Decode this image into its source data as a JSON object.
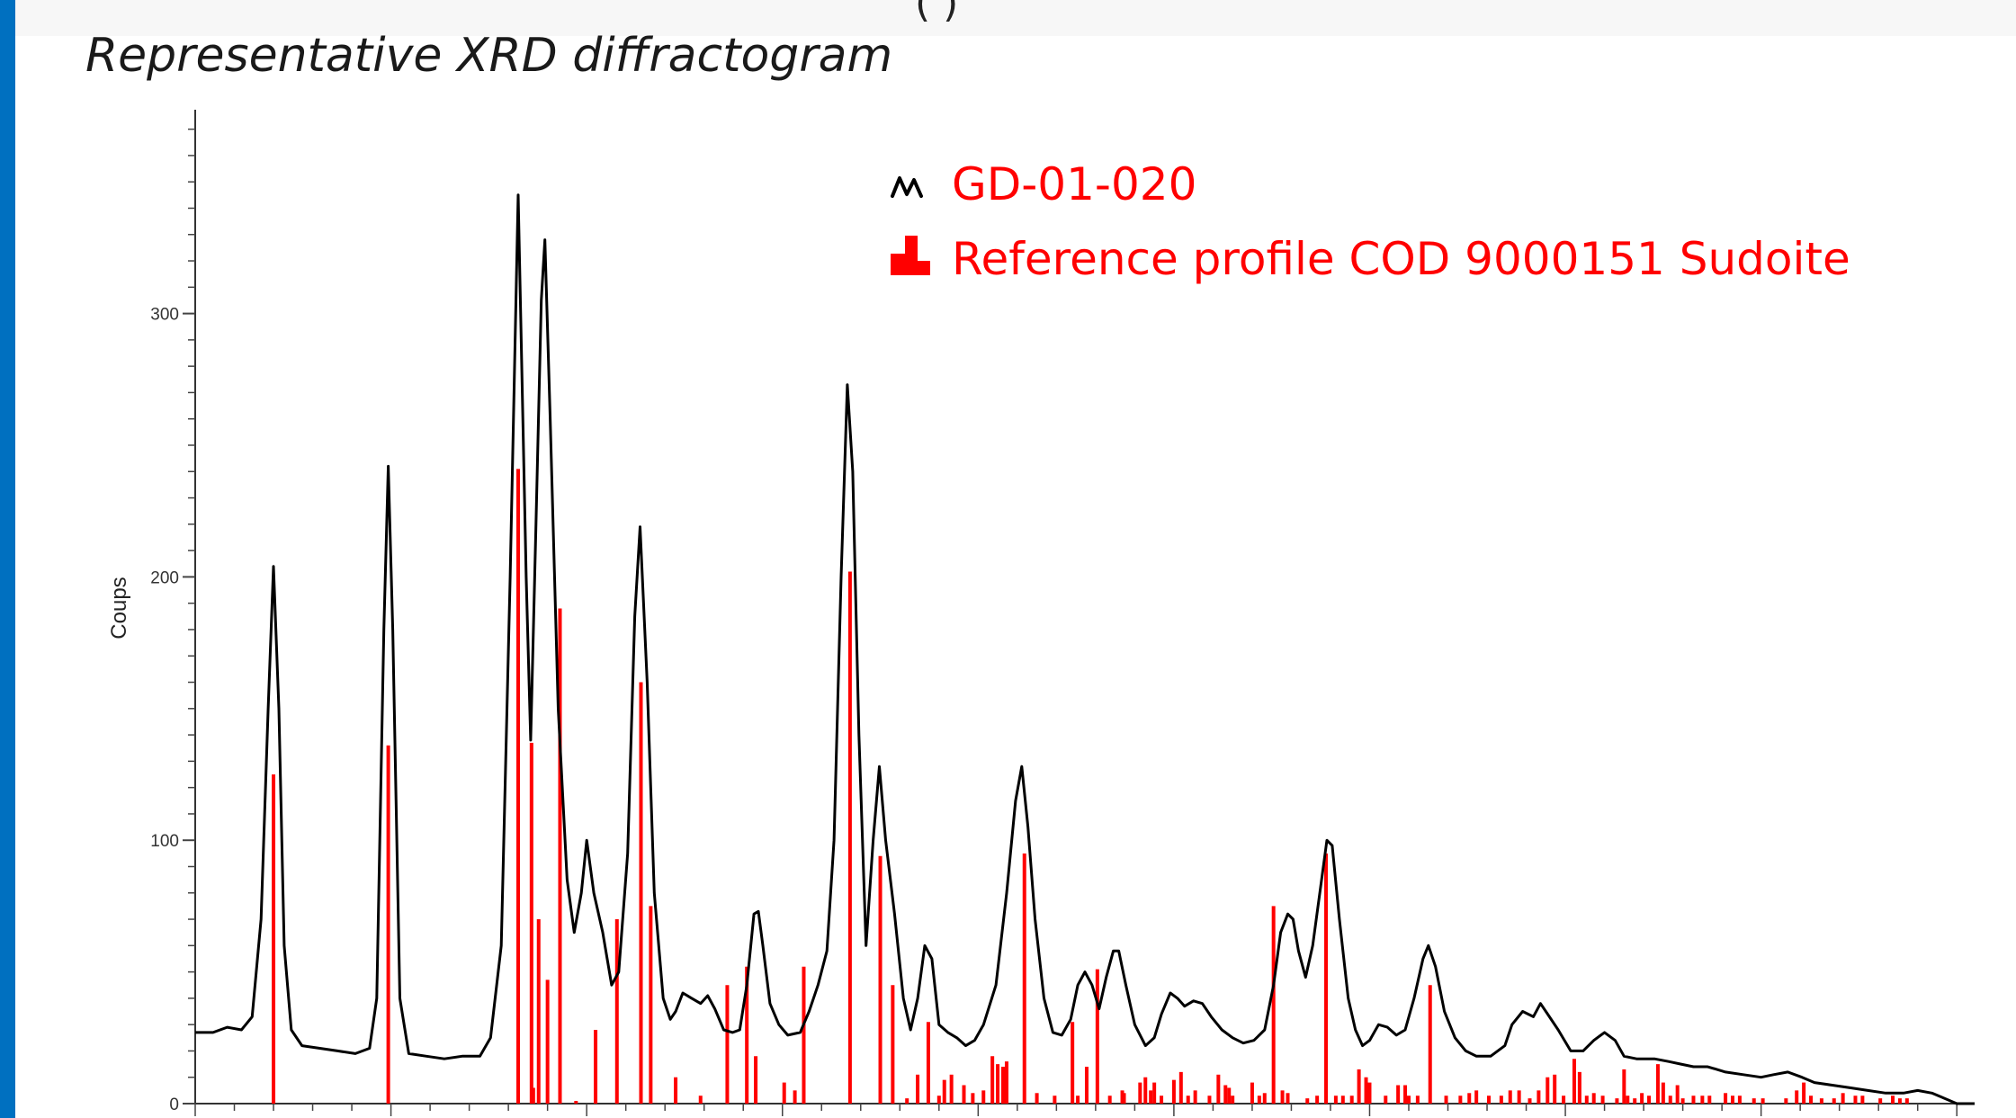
{
  "header": {
    "partial_text": "(  )"
  },
  "slide": {
    "title": "Representative XRD diffractogram"
  },
  "colors": {
    "accent_bar": "#0070c0",
    "trace": "#000000",
    "reference": "#ff0000"
  },
  "chart_data": {
    "type": "line",
    "title": "",
    "ylabel": "Coups",
    "xlabel": "",
    "ylim": [
      0,
      375
    ],
    "xlim": [
      0,
      100
    ],
    "yticks": [
      0,
      100,
      200,
      300
    ],
    "yticklabels": [
      "0",
      "100",
      "200",
      "300"
    ],
    "legend_position": "top-center",
    "series": [
      {
        "name": "GD-01-020",
        "style": "line",
        "color": "#000000",
        "points": [
          [
            0,
            27
          ],
          [
            1,
            27
          ],
          [
            1.8,
            29
          ],
          [
            2.6,
            28
          ],
          [
            3.2,
            33
          ],
          [
            3.7,
            70
          ],
          [
            4.1,
            150
          ],
          [
            4.4,
            204
          ],
          [
            4.7,
            150
          ],
          [
            5.0,
            60
          ],
          [
            5.4,
            28
          ],
          [
            6.0,
            22
          ],
          [
            7.0,
            21
          ],
          [
            8.0,
            20
          ],
          [
            9.0,
            19
          ],
          [
            9.8,
            21
          ],
          [
            10.2,
            40
          ],
          [
            10.6,
            180
          ],
          [
            10.85,
            242
          ],
          [
            11.1,
            180
          ],
          [
            11.5,
            40
          ],
          [
            12.0,
            19
          ],
          [
            13.0,
            18
          ],
          [
            14.0,
            17
          ],
          [
            15.0,
            18
          ],
          [
            16.0,
            18
          ],
          [
            16.6,
            25
          ],
          [
            17.2,
            60
          ],
          [
            17.7,
            200
          ],
          [
            18.15,
            345
          ],
          [
            18.6,
            200
          ],
          [
            18.85,
            138
          ],
          [
            19.15,
            220
          ],
          [
            19.45,
            305
          ],
          [
            19.65,
            328
          ],
          [
            19.95,
            260
          ],
          [
            20.4,
            150
          ],
          [
            20.9,
            85
          ],
          [
            21.3,
            65
          ],
          [
            21.7,
            80
          ],
          [
            22.0,
            100
          ],
          [
            22.4,
            80
          ],
          [
            22.9,
            65
          ],
          [
            23.4,
            45
          ],
          [
            23.8,
            50
          ],
          [
            24.3,
            95
          ],
          [
            24.7,
            185
          ],
          [
            25.0,
            219
          ],
          [
            25.4,
            160
          ],
          [
            25.8,
            80
          ],
          [
            26.3,
            40
          ],
          [
            26.7,
            32
          ],
          [
            27.0,
            35
          ],
          [
            27.4,
            42
          ],
          [
            27.9,
            40
          ],
          [
            28.4,
            38
          ],
          [
            28.8,
            41
          ],
          [
            29.2,
            36
          ],
          [
            29.7,
            28
          ],
          [
            30.2,
            27
          ],
          [
            30.6,
            28
          ],
          [
            31.0,
            45
          ],
          [
            31.4,
            72
          ],
          [
            31.65,
            73
          ],
          [
            31.9,
            60
          ],
          [
            32.3,
            38
          ],
          [
            32.8,
            30
          ],
          [
            33.3,
            26
          ],
          [
            34.0,
            27
          ],
          [
            34.5,
            35
          ],
          [
            35.0,
            45
          ],
          [
            35.5,
            58
          ],
          [
            35.9,
            100
          ],
          [
            36.3,
            200
          ],
          [
            36.65,
            273
          ],
          [
            36.95,
            240
          ],
          [
            37.3,
            140
          ],
          [
            37.7,
            60
          ],
          [
            38.1,
            100
          ],
          [
            38.45,
            128
          ],
          [
            38.8,
            100
          ],
          [
            39.3,
            72
          ],
          [
            39.8,
            40
          ],
          [
            40.2,
            28
          ],
          [
            40.6,
            40
          ],
          [
            41.0,
            60
          ],
          [
            41.4,
            55
          ],
          [
            41.8,
            30
          ],
          [
            42.3,
            27
          ],
          [
            42.8,
            25
          ],
          [
            43.3,
            22
          ],
          [
            43.8,
            24
          ],
          [
            44.3,
            30
          ],
          [
            45.0,
            45
          ],
          [
            45.6,
            80
          ],
          [
            46.1,
            115
          ],
          [
            46.45,
            128
          ],
          [
            46.8,
            105
          ],
          [
            47.2,
            70
          ],
          [
            47.7,
            40
          ],
          [
            48.2,
            27
          ],
          [
            48.7,
            26
          ],
          [
            49.2,
            32
          ],
          [
            49.6,
            45
          ],
          [
            50.0,
            50
          ],
          [
            50.4,
            45
          ],
          [
            50.8,
            36
          ],
          [
            51.2,
            48
          ],
          [
            51.6,
            58
          ],
          [
            51.9,
            58
          ],
          [
            52.3,
            45
          ],
          [
            52.8,
            30
          ],
          [
            53.4,
            22
          ],
          [
            53.9,
            25
          ],
          [
            54.3,
            34
          ],
          [
            54.8,
            42
          ],
          [
            55.2,
            40
          ],
          [
            55.6,
            37
          ],
          [
            56.1,
            39
          ],
          [
            56.6,
            38
          ],
          [
            57.1,
            33
          ],
          [
            57.7,
            28
          ],
          [
            58.3,
            25
          ],
          [
            58.9,
            23
          ],
          [
            59.5,
            24
          ],
          [
            60.1,
            28
          ],
          [
            60.6,
            45
          ],
          [
            61.0,
            65
          ],
          [
            61.4,
            72
          ],
          [
            61.7,
            70
          ],
          [
            62.0,
            58
          ],
          [
            62.4,
            48
          ],
          [
            62.8,
            60
          ],
          [
            63.2,
            80
          ],
          [
            63.6,
            100
          ],
          [
            63.9,
            98
          ],
          [
            64.3,
            70
          ],
          [
            64.8,
            40
          ],
          [
            65.2,
            28
          ],
          [
            65.6,
            22
          ],
          [
            66.0,
            24
          ],
          [
            66.5,
            30
          ],
          [
            67.0,
            29
          ],
          [
            67.5,
            26
          ],
          [
            68.0,
            28
          ],
          [
            68.5,
            40
          ],
          [
            69.0,
            55
          ],
          [
            69.3,
            60
          ],
          [
            69.7,
            52
          ],
          [
            70.2,
            35
          ],
          [
            70.8,
            25
          ],
          [
            71.4,
            20
          ],
          [
            72.0,
            18
          ],
          [
            72.8,
            18
          ],
          [
            73.6,
            22
          ],
          [
            74.0,
            30
          ],
          [
            74.6,
            35
          ],
          [
            75.2,
            33
          ],
          [
            75.6,
            38
          ],
          [
            76.0,
            34
          ],
          [
            76.6,
            28
          ],
          [
            77.3,
            20
          ],
          [
            78.0,
            20
          ],
          [
            78.6,
            24
          ],
          [
            79.2,
            27
          ],
          [
            79.8,
            24
          ],
          [
            80.3,
            18
          ],
          [
            81.0,
            17
          ],
          [
            82.0,
            17
          ],
          [
            82.8,
            16
          ],
          [
            83.5,
            15
          ],
          [
            84.2,
            14
          ],
          [
            85.0,
            14
          ],
          [
            86.0,
            12
          ],
          [
            87.0,
            11
          ],
          [
            88.0,
            10
          ],
          [
            88.7,
            11
          ],
          [
            89.5,
            12
          ],
          [
            90.3,
            10
          ],
          [
            91.0,
            8
          ],
          [
            92.0,
            7
          ],
          [
            93.0,
            6
          ],
          [
            94.0,
            5
          ],
          [
            95.0,
            4
          ],
          [
            96.0,
            4
          ],
          [
            96.8,
            5
          ],
          [
            97.6,
            4
          ],
          [
            98.3,
            2
          ],
          [
            99.0,
            0
          ],
          [
            100,
            0
          ]
        ]
      },
      {
        "name": "Reference profile COD 9000151 Sudoite",
        "style": "stick",
        "color": "#ff0000",
        "sticks": [
          [
            4.4,
            125
          ],
          [
            10.85,
            136
          ],
          [
            18.15,
            241
          ],
          [
            18.9,
            137
          ],
          [
            19.0,
            6
          ],
          [
            19.3,
            70
          ],
          [
            19.8,
            47
          ],
          [
            20.5,
            188
          ],
          [
            21.4,
            1
          ],
          [
            22.5,
            28
          ],
          [
            23.7,
            70
          ],
          [
            25.05,
            160
          ],
          [
            25.6,
            75
          ],
          [
            27.0,
            10
          ],
          [
            28.4,
            3
          ],
          [
            29.9,
            45
          ],
          [
            31.0,
            52
          ],
          [
            31.5,
            18
          ],
          [
            33.1,
            8
          ],
          [
            33.7,
            5
          ],
          [
            34.2,
            52
          ],
          [
            36.8,
            202
          ],
          [
            38.5,
            94
          ],
          [
            39.2,
            45
          ],
          [
            40.0,
            2
          ],
          [
            40.6,
            11
          ],
          [
            41.2,
            31
          ],
          [
            41.8,
            3
          ],
          [
            42.1,
            9
          ],
          [
            42.5,
            11
          ],
          [
            43.2,
            7
          ],
          [
            43.7,
            4
          ],
          [
            44.3,
            5
          ],
          [
            44.8,
            18
          ],
          [
            45.1,
            15
          ],
          [
            45.4,
            14
          ],
          [
            45.6,
            16
          ],
          [
            46.6,
            95
          ],
          [
            47.3,
            4
          ],
          [
            48.3,
            3
          ],
          [
            49.3,
            31
          ],
          [
            49.6,
            3
          ],
          [
            50.1,
            14
          ],
          [
            50.7,
            51
          ],
          [
            51.4,
            3
          ],
          [
            52.1,
            5
          ],
          [
            52.2,
            4
          ],
          [
            53.1,
            8
          ],
          [
            53.4,
            10
          ],
          [
            53.7,
            5
          ],
          [
            53.9,
            8
          ],
          [
            54.3,
            3
          ],
          [
            55.0,
            9
          ],
          [
            55.4,
            12
          ],
          [
            55.8,
            3
          ],
          [
            56.2,
            5
          ],
          [
            57.0,
            3
          ],
          [
            57.5,
            11
          ],
          [
            57.9,
            7
          ],
          [
            58.1,
            6
          ],
          [
            58.3,
            3
          ],
          [
            59.4,
            8
          ],
          [
            59.8,
            3
          ],
          [
            60.1,
            4
          ],
          [
            60.6,
            75
          ],
          [
            61.1,
            5
          ],
          [
            61.4,
            4
          ],
          [
            62.5,
            2
          ],
          [
            63.05,
            3
          ],
          [
            63.55,
            95
          ],
          [
            64.1,
            3
          ],
          [
            64.5,
            3
          ],
          [
            65.0,
            3
          ],
          [
            65.4,
            13
          ],
          [
            65.8,
            10
          ],
          [
            66.0,
            8
          ],
          [
            66.9,
            3
          ],
          [
            67.6,
            7
          ],
          [
            68.0,
            7
          ],
          [
            68.2,
            3
          ],
          [
            68.7,
            3
          ],
          [
            69.4,
            45
          ],
          [
            70.3,
            3
          ],
          [
            71.1,
            3
          ],
          [
            71.6,
            4
          ],
          [
            72.0,
            5
          ],
          [
            72.7,
            3
          ],
          [
            73.4,
            3
          ],
          [
            73.9,
            5
          ],
          [
            74.4,
            5
          ],
          [
            75.0,
            2
          ],
          [
            75.5,
            5
          ],
          [
            76.0,
            10
          ],
          [
            76.4,
            11
          ],
          [
            76.9,
            3
          ],
          [
            77.5,
            17
          ],
          [
            77.8,
            12
          ],
          [
            78.2,
            3
          ],
          [
            78.6,
            4
          ],
          [
            79.1,
            3
          ],
          [
            79.9,
            2
          ],
          [
            80.3,
            13
          ],
          [
            80.5,
            3
          ],
          [
            80.9,
            2
          ],
          [
            81.3,
            4
          ],
          [
            81.7,
            3
          ],
          [
            82.2,
            15
          ],
          [
            82.5,
            8
          ],
          [
            82.9,
            3
          ],
          [
            83.3,
            7
          ],
          [
            83.6,
            2
          ],
          [
            84.2,
            3
          ],
          [
            84.7,
            3
          ],
          [
            85.1,
            3
          ],
          [
            86.0,
            4
          ],
          [
            86.4,
            3
          ],
          [
            86.8,
            3
          ],
          [
            87.6,
            2
          ],
          [
            88.1,
            2
          ],
          [
            89.4,
            2
          ],
          [
            90.0,
            5
          ],
          [
            90.4,
            8
          ],
          [
            90.8,
            3
          ],
          [
            91.4,
            2
          ],
          [
            92.1,
            2
          ],
          [
            92.6,
            4
          ],
          [
            93.3,
            3
          ],
          [
            93.7,
            3
          ],
          [
            94.7,
            2
          ],
          [
            95.4,
            3
          ],
          [
            95.8,
            2
          ],
          [
            96.2,
            2
          ]
        ]
      }
    ]
  }
}
